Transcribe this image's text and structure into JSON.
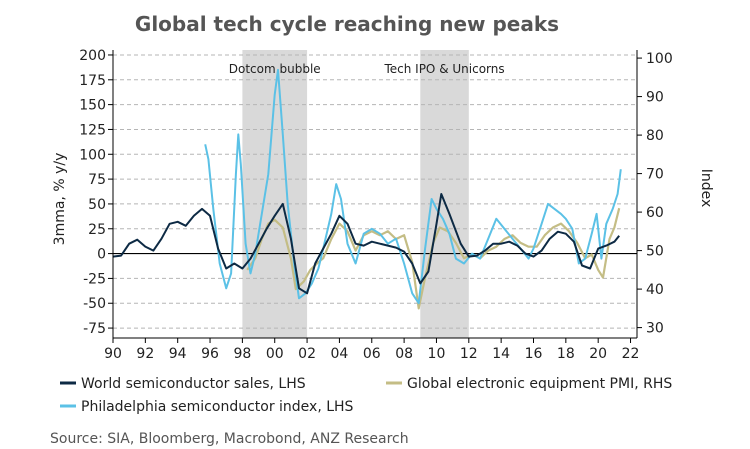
{
  "chart_data": {
    "type": "line",
    "title": "Global tech cycle reaching new peaks",
    "ylabel_left": "3mma, % y/y",
    "ylabel_right": "Index",
    "ylim_left": [
      -85,
      205
    ],
    "ylim_right": [
      27.3,
      102.1
    ],
    "xlim": [
      1990,
      2022.4
    ],
    "x_ticks": [
      1990,
      1992,
      1994,
      1996,
      1998,
      2000,
      2002,
      2004,
      2006,
      2008,
      2010,
      2012,
      2014,
      2016,
      2018,
      2020,
      2022
    ],
    "x_tick_labels": [
      "90",
      "92",
      "94",
      "96",
      "98",
      "00",
      "02",
      "04",
      "06",
      "08",
      "10",
      "12",
      "14",
      "16",
      "18",
      "20",
      "22"
    ],
    "y_left_ticks": [
      -75,
      -50,
      -25,
      0,
      25,
      50,
      75,
      100,
      125,
      150,
      175,
      200
    ],
    "y_right_ticks": [
      30,
      40,
      50,
      60,
      70,
      80,
      90,
      100
    ],
    "grid": "horizontal dashed",
    "zero_line": true,
    "shaded_periods": [
      {
        "label": "Dotcom bubble",
        "start": 1998,
        "end": 2002
      },
      {
        "label": "Tech IPO & Unicorns",
        "start": 2009,
        "end": 2012
      }
    ],
    "legend_position": "bottom",
    "series": [
      {
        "name": "World semiconductor sales, LHS",
        "axis": "left",
        "color": "#0d2a44",
        "points": [
          [
            1990.0,
            -3
          ],
          [
            1990.5,
            -2
          ],
          [
            1991.0,
            10
          ],
          [
            1991.5,
            14
          ],
          [
            1992.0,
            7
          ],
          [
            1992.5,
            3
          ],
          [
            1993.0,
            15
          ],
          [
            1993.5,
            30
          ],
          [
            1994.0,
            32
          ],
          [
            1994.5,
            28
          ],
          [
            1995.0,
            38
          ],
          [
            1995.5,
            45
          ],
          [
            1996.0,
            38
          ],
          [
            1996.5,
            5
          ],
          [
            1997.0,
            -15
          ],
          [
            1997.5,
            -10
          ],
          [
            1998.0,
            -15
          ],
          [
            1998.5,
            -5
          ],
          [
            1999.0,
            10
          ],
          [
            1999.5,
            25
          ],
          [
            2000.0,
            38
          ],
          [
            2000.5,
            50
          ],
          [
            2001.0,
            15
          ],
          [
            2001.5,
            -35
          ],
          [
            2002.0,
            -40
          ],
          [
            2002.5,
            -10
          ],
          [
            2003.0,
            5
          ],
          [
            2003.5,
            20
          ],
          [
            2004.0,
            38
          ],
          [
            2004.5,
            30
          ],
          [
            2005.0,
            10
          ],
          [
            2005.5,
            8
          ],
          [
            2006.0,
            12
          ],
          [
            2006.5,
            10
          ],
          [
            2007.0,
            8
          ],
          [
            2007.5,
            6
          ],
          [
            2008.0,
            2
          ],
          [
            2008.5,
            -10
          ],
          [
            2009.0,
            -30
          ],
          [
            2009.5,
            -18
          ],
          [
            2010.0,
            30
          ],
          [
            2010.3,
            60
          ],
          [
            2010.8,
            40
          ],
          [
            2011.5,
            10
          ],
          [
            2012.0,
            -3
          ],
          [
            2012.5,
            -2
          ],
          [
            2013.0,
            3
          ],
          [
            2013.5,
            10
          ],
          [
            2014.0,
            10
          ],
          [
            2014.5,
            12
          ],
          [
            2015.0,
            8
          ],
          [
            2015.5,
            0
          ],
          [
            2016.0,
            -3
          ],
          [
            2016.5,
            3
          ],
          [
            2017.0,
            15
          ],
          [
            2017.5,
            22
          ],
          [
            2018.0,
            20
          ],
          [
            2018.5,
            12
          ],
          [
            2019.0,
            -12
          ],
          [
            2019.5,
            -15
          ],
          [
            2020.0,
            5
          ],
          [
            2020.5,
            8
          ],
          [
            2021.0,
            12
          ],
          [
            2021.3,
            18
          ]
        ]
      },
      {
        "name": "Global electronic equipment PMI, RHS",
        "axis": "right",
        "color": "#c4bd85",
        "points": [
          [
            1998.3,
            45
          ],
          [
            1998.8,
            48
          ],
          [
            1999.2,
            53
          ],
          [
            1999.6,
            57
          ],
          [
            2000.0,
            58
          ],
          [
            2000.5,
            56
          ],
          [
            2001.0,
            48
          ],
          [
            2001.3,
            40
          ],
          [
            2001.8,
            42
          ],
          [
            2002.2,
            45
          ],
          [
            2002.7,
            47
          ],
          [
            2003.0,
            48
          ],
          [
            2003.5,
            53
          ],
          [
            2004.0,
            57
          ],
          [
            2004.5,
            55
          ],
          [
            2005.0,
            50
          ],
          [
            2005.5,
            54
          ],
          [
            2006.0,
            55
          ],
          [
            2006.5,
            54
          ],
          [
            2007.0,
            55
          ],
          [
            2007.5,
            53
          ],
          [
            2008.0,
            54
          ],
          [
            2008.5,
            47
          ],
          [
            2008.9,
            35
          ],
          [
            2009.3,
            43
          ],
          [
            2009.8,
            52
          ],
          [
            2010.2,
            56
          ],
          [
            2010.7,
            55
          ],
          [
            2011.2,
            52
          ],
          [
            2011.7,
            48
          ],
          [
            2012.2,
            49
          ],
          [
            2012.7,
            48
          ],
          [
            2013.2,
            50
          ],
          [
            2013.7,
            51
          ],
          [
            2014.2,
            53
          ],
          [
            2014.7,
            54
          ],
          [
            2015.2,
            52
          ],
          [
            2015.7,
            51
          ],
          [
            2016.2,
            51
          ],
          [
            2016.7,
            54
          ],
          [
            2017.2,
            56
          ],
          [
            2017.7,
            57
          ],
          [
            2018.2,
            55
          ],
          [
            2018.7,
            52
          ],
          [
            2019.2,
            48
          ],
          [
            2019.6,
            49
          ],
          [
            2020.0,
            45
          ],
          [
            2020.3,
            43
          ],
          [
            2020.7,
            53
          ],
          [
            2021.0,
            56
          ],
          [
            2021.3,
            61
          ]
        ]
      },
      {
        "name": "Philadelphia semiconductor index, LHS",
        "axis": "left",
        "color": "#5bc1e6",
        "points": [
          [
            1995.7,
            110
          ],
          [
            1995.9,
            95
          ],
          [
            1996.2,
            45
          ],
          [
            1996.6,
            -10
          ],
          [
            1997.0,
            -35
          ],
          [
            1997.3,
            -20
          ],
          [
            1997.6,
            80
          ],
          [
            1997.75,
            120
          ],
          [
            1997.9,
            90
          ],
          [
            1998.2,
            10
          ],
          [
            1998.5,
            -20
          ],
          [
            1998.8,
            0
          ],
          [
            1999.2,
            40
          ],
          [
            1999.6,
            80
          ],
          [
            2000.0,
            160
          ],
          [
            2000.2,
            185
          ],
          [
            2000.5,
            120
          ],
          [
            2000.8,
            50
          ],
          [
            2001.2,
            -10
          ],
          [
            2001.5,
            -45
          ],
          [
            2001.9,
            -40
          ],
          [
            2002.3,
            -30
          ],
          [
            2002.7,
            -15
          ],
          [
            2003.0,
            5
          ],
          [
            2003.5,
            40
          ],
          [
            2003.8,
            70
          ],
          [
            2004.1,
            55
          ],
          [
            2004.5,
            10
          ],
          [
            2005.0,
            -10
          ],
          [
            2005.5,
            20
          ],
          [
            2006.0,
            25
          ],
          [
            2006.5,
            20
          ],
          [
            2007.0,
            10
          ],
          [
            2007.5,
            15
          ],
          [
            2008.0,
            -10
          ],
          [
            2008.5,
            -40
          ],
          [
            2008.9,
            -50
          ],
          [
            2009.3,
            5
          ],
          [
            2009.7,
            55
          ],
          [
            2010.0,
            45
          ],
          [
            2010.4,
            35
          ],
          [
            2010.8,
            20
          ],
          [
            2011.2,
            -5
          ],
          [
            2011.7,
            -10
          ],
          [
            2012.2,
            0
          ],
          [
            2012.7,
            -5
          ],
          [
            2013.2,
            15
          ],
          [
            2013.7,
            35
          ],
          [
            2014.2,
            25
          ],
          [
            2014.7,
            15
          ],
          [
            2015.2,
            5
          ],
          [
            2015.7,
            -5
          ],
          [
            2016.0,
            5
          ],
          [
            2016.5,
            30
          ],
          [
            2016.9,
            50
          ],
          [
            2017.3,
            45
          ],
          [
            2017.7,
            40
          ],
          [
            2018.0,
            35
          ],
          [
            2018.4,
            25
          ],
          [
            2018.8,
            -10
          ],
          [
            2019.2,
            -5
          ],
          [
            2019.6,
            20
          ],
          [
            2019.9,
            40
          ],
          [
            2020.2,
            -5
          ],
          [
            2020.5,
            30
          ],
          [
            2020.9,
            45
          ],
          [
            2021.2,
            60
          ],
          [
            2021.4,
            85
          ]
        ]
      }
    ]
  },
  "source": "Source: SIA, Bloomberg, Macrobond, ANZ Research"
}
